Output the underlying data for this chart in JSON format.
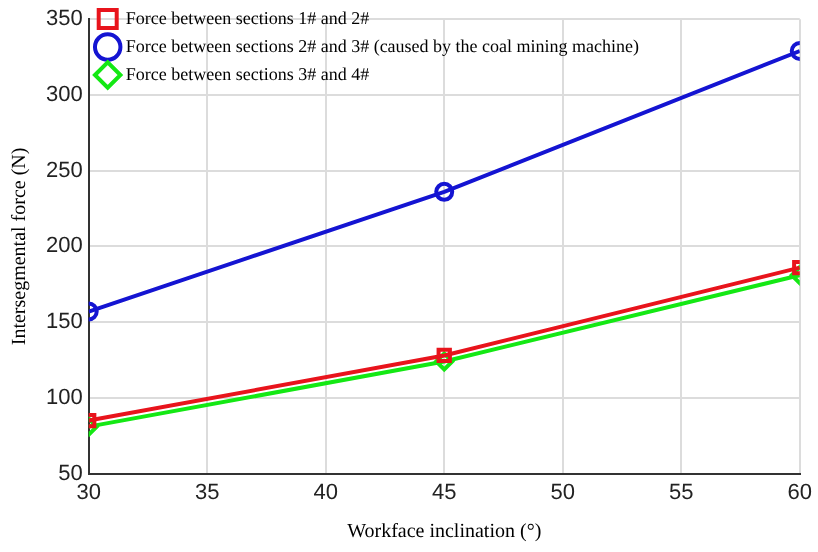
{
  "chart_data": {
    "type": "line",
    "xlabel": "Workface inclination (°)",
    "ylabel": "Intersegmental force (N)",
    "x": [
      30,
      45,
      60
    ],
    "xlim": [
      30,
      60
    ],
    "xticks": [
      30,
      35,
      40,
      45,
      50,
      55,
      60
    ],
    "ylim": [
      50,
      350
    ],
    "yticks": [
      50,
      100,
      150,
      200,
      250,
      300,
      350
    ],
    "grid": true,
    "legend": "top left",
    "series": [
      {
        "name": "Force between sections 1# and 2#",
        "color": "#e8141c",
        "marker": "square",
        "values": [
          85,
          128,
          186
        ]
      },
      {
        "name": "Force between sections 2# and 3# (caused by the coal mining machine)",
        "color": "#1414d2",
        "marker": "circle",
        "values": [
          157,
          236,
          329
        ]
      },
      {
        "name": "Force between sections 3# and 4#",
        "color": "#14e814",
        "marker": "diamond",
        "values": [
          81,
          124,
          181
        ]
      }
    ]
  }
}
